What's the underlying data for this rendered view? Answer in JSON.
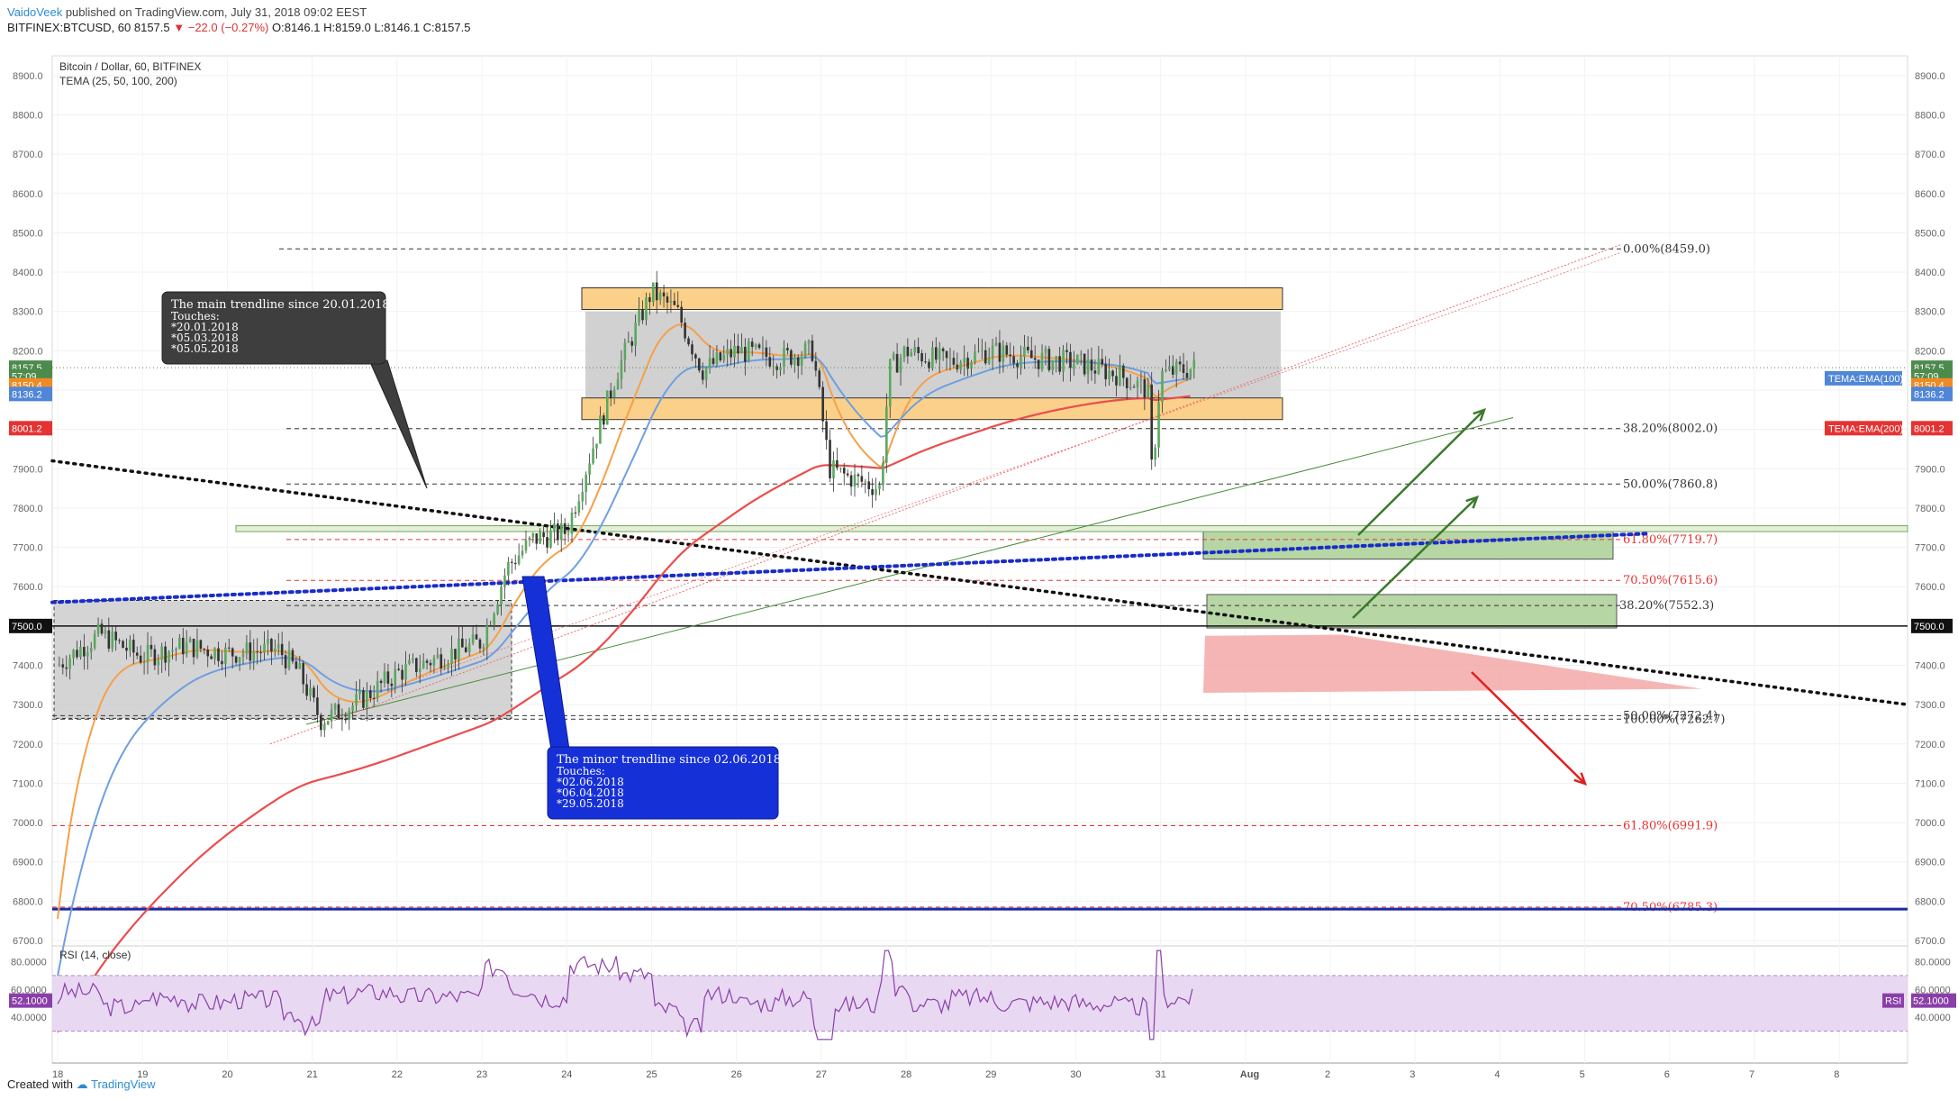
{
  "header": {
    "author": "VaidoVeek",
    "published": "published on TradingView.com, July 31, 2018 09:02 EEST",
    "symbol_line": "BITFINEX:BTCUSD, 60  8157.5",
    "change": "▼ −22.0 (−0.27%)",
    "ohlc": "O:8146.1 H:8159.0 L:8146.1 C:8157.5"
  },
  "footer": {
    "created_with": "Created with",
    "brand": "TradingView"
  },
  "chart_data": {
    "type": "candlestick",
    "title": "Bitcoin / Dollar, 60, BITFINEX",
    "indicator": "TEMA (25, 50, 100, 200)",
    "ylim": [
      6700,
      8950
    ],
    "y_ticks": [
      "8900.0",
      "8800.0",
      "8700.0",
      "8600.0",
      "8500.0",
      "8400.0",
      "8300.0",
      "8200.0",
      "8100.0",
      "8000.0",
      "7900.0",
      "7800.0",
      "7700.0",
      "7600.0",
      "7500.0",
      "7400.0",
      "7300.0",
      "7200.0",
      "7100.0",
      "7000.0",
      "6900.0",
      "6800.0",
      "6700.0"
    ],
    "x_ticks": [
      "18",
      "19",
      "20",
      "21",
      "22",
      "23",
      "24",
      "25",
      "26",
      "27",
      "28",
      "29",
      "30",
      "31",
      "Aug",
      "2",
      "3",
      "4",
      "5",
      "6",
      "7",
      "8"
    ],
    "price_path": [
      [
        18,
        7400
      ],
      [
        18.5,
        7480
      ],
      [
        19,
        7420
      ],
      [
        19.5,
        7450
      ],
      [
        20,
        7430
      ],
      [
        20.6,
        7440
      ],
      [
        20.85,
        7380
      ],
      [
        21.1,
        7260
      ],
      [
        21.5,
        7300
      ],
      [
        22,
        7380
      ],
      [
        22.5,
        7420
      ],
      [
        23,
        7460
      ],
      [
        23.3,
        7650
      ],
      [
        23.6,
        7720
      ],
      [
        24,
        7740
      ],
      [
        24.3,
        7950
      ],
      [
        24.6,
        8150
      ],
      [
        25,
        8350
      ],
      [
        25.3,
        8300
      ],
      [
        25.6,
        8150
      ],
      [
        26,
        8200
      ],
      [
        26.5,
        8180
      ],
      [
        26.9,
        8200
      ],
      [
        27.1,
        7900
      ],
      [
        27.3,
        7880
      ],
      [
        27.7,
        7850
      ],
      [
        27.8,
        8150
      ],
      [
        28,
        8200
      ],
      [
        28.5,
        8170
      ],
      [
        29,
        8200
      ],
      [
        29.5,
        8180
      ],
      [
        30,
        8170
      ],
      [
        30.5,
        8140
      ],
      [
        30.85,
        8100
      ],
      [
        30.9,
        7880
      ],
      [
        31,
        8140
      ],
      [
        31.4,
        8157
      ]
    ],
    "rsi": {
      "label": "RSI (14, close)",
      "value": "52.1000",
      "ticks": [
        "80.0000",
        "60.0000",
        "40.0000"
      ]
    },
    "price_labels": [
      {
        "text": "8157.5",
        "color": "#4d8b4d"
      },
      {
        "text": "57:09",
        "color": "#4d8b4d"
      },
      {
        "text": "8150.4",
        "color": "#f08a24"
      },
      {
        "text": "8136.2",
        "color": "#4f86d8"
      },
      {
        "text": "8001.2",
        "color": "#e53333"
      },
      {
        "text": "7500.0",
        "color": "#111111"
      }
    ],
    "tema_labels": [
      "TEMA:EMA(100)",
      "TEMA:EMA(200)"
    ],
    "fib_levels": [
      {
        "label": "0.00%(8459.0)",
        "price": 8459,
        "color": "#333"
      },
      {
        "label": "38.20%(8002.0)",
        "price": 8002,
        "color": "#333"
      },
      {
        "label": "50.00%(7860.8)",
        "price": 7861,
        "color": "#333"
      },
      {
        "label": "61.80%(7719.7)",
        "price": 7720,
        "color": "#e53333"
      },
      {
        "label": "70.50%(7615.6)",
        "price": 7616,
        "color": "#e53333"
      },
      {
        "label": "38.20%(7552.3)",
        "price": 7552,
        "color": "#333"
      },
      {
        "label": "50.00%(7272.4)",
        "price": 7272,
        "color": "#333"
      },
      {
        "label": "100.00%(7262.7)",
        "price": 7263,
        "color": "#333"
      },
      {
        "label": "61.80%(6991.9)",
        "price": 6992,
        "color": "#e53333"
      },
      {
        "label": "70.50%(6785.3)",
        "price": 6785,
        "color": "#e53333"
      }
    ],
    "annotations": [
      {
        "title": "The main trendline since 20.01.2018",
        "lines": [
          "Touches:",
          "*20.01.2018",
          "*05.03.2018",
          "*05.05.2018"
        ]
      },
      {
        "title": "The minor trendline since 02.06.2018",
        "lines": [
          "Touches:",
          "*02.06.2018",
          "*06.04.2018",
          "*29.05.2018"
        ]
      }
    ],
    "colors": {
      "tema25": "#f5a04a",
      "tema50": "#c98a3a",
      "tema100": "#6f9fe0",
      "tema200": "#ea4d4d",
      "rsi": "#8a3fa8",
      "up": "#3f8f44",
      "down": "#a33"
    }
  }
}
